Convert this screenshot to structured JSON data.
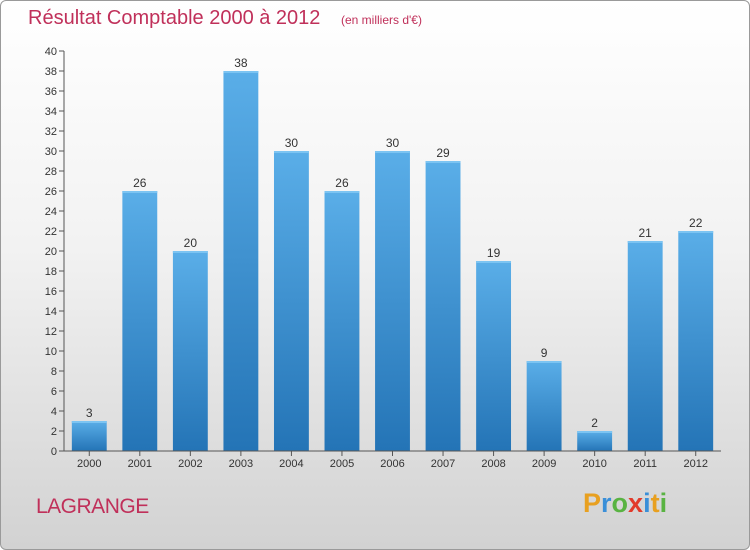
{
  "header": {
    "title": "Résultat Comptable 2000 à 2012",
    "subtitle": "(en milliers d'€)"
  },
  "footer": {
    "place": "LAGRANGE",
    "logo_letters": [
      "P",
      "r",
      "o",
      "x",
      "i",
      "t",
      "i"
    ],
    "logo_colors": [
      "#e8a020",
      "#3a8fd8",
      "#59b342",
      "#e23a2a",
      "#3a8fd8",
      "#e8a020",
      "#59b342"
    ]
  },
  "chart_data": {
    "type": "bar",
    "title": "Résultat Comptable 2000 à 2012",
    "subtitle": "(en milliers d'€)",
    "categories": [
      "2000",
      "2001",
      "2002",
      "2003",
      "2004",
      "2005",
      "2006",
      "2007",
      "2008",
      "2009",
      "2010",
      "2011",
      "2012"
    ],
    "values": [
      3,
      26,
      20,
      38,
      30,
      26,
      30,
      29,
      19,
      9,
      2,
      21,
      22
    ],
    "ylim": [
      0,
      40
    ],
    "ytick_step": 2,
    "grid": false,
    "bar_color": "#3a8fd8"
  }
}
